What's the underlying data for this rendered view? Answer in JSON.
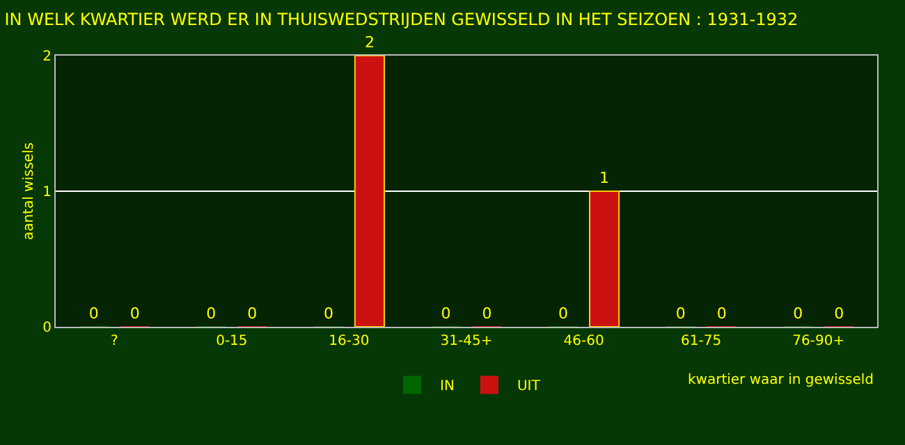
{
  "chart_data": {
    "type": "bar",
    "title": "IN WELK KWARTIER WERD ER IN THUISWEDSTRIJDEN GEWISSELD IN HET SEIZOEN : 1931-1932",
    "xlabel": "kwartier waar in gewisseld",
    "ylabel": "aantal wissels",
    "categories": [
      "?",
      "0-15",
      "16-30",
      "31-45+",
      "46-60",
      "61-75",
      "76-90+"
    ],
    "series": [
      {
        "name": "IN",
        "color": "#006600",
        "values": [
          0,
          0,
          0,
          0,
          0,
          0,
          0
        ]
      },
      {
        "name": "UIT",
        "color": "#cc1111",
        "values": [
          0,
          0,
          2,
          0,
          1,
          0,
          0
        ]
      }
    ],
    "ylim": [
      0,
      2
    ],
    "yticks": [
      0,
      1,
      2
    ],
    "grid": "y",
    "legend": "bottom",
    "data_labels": true
  }
}
